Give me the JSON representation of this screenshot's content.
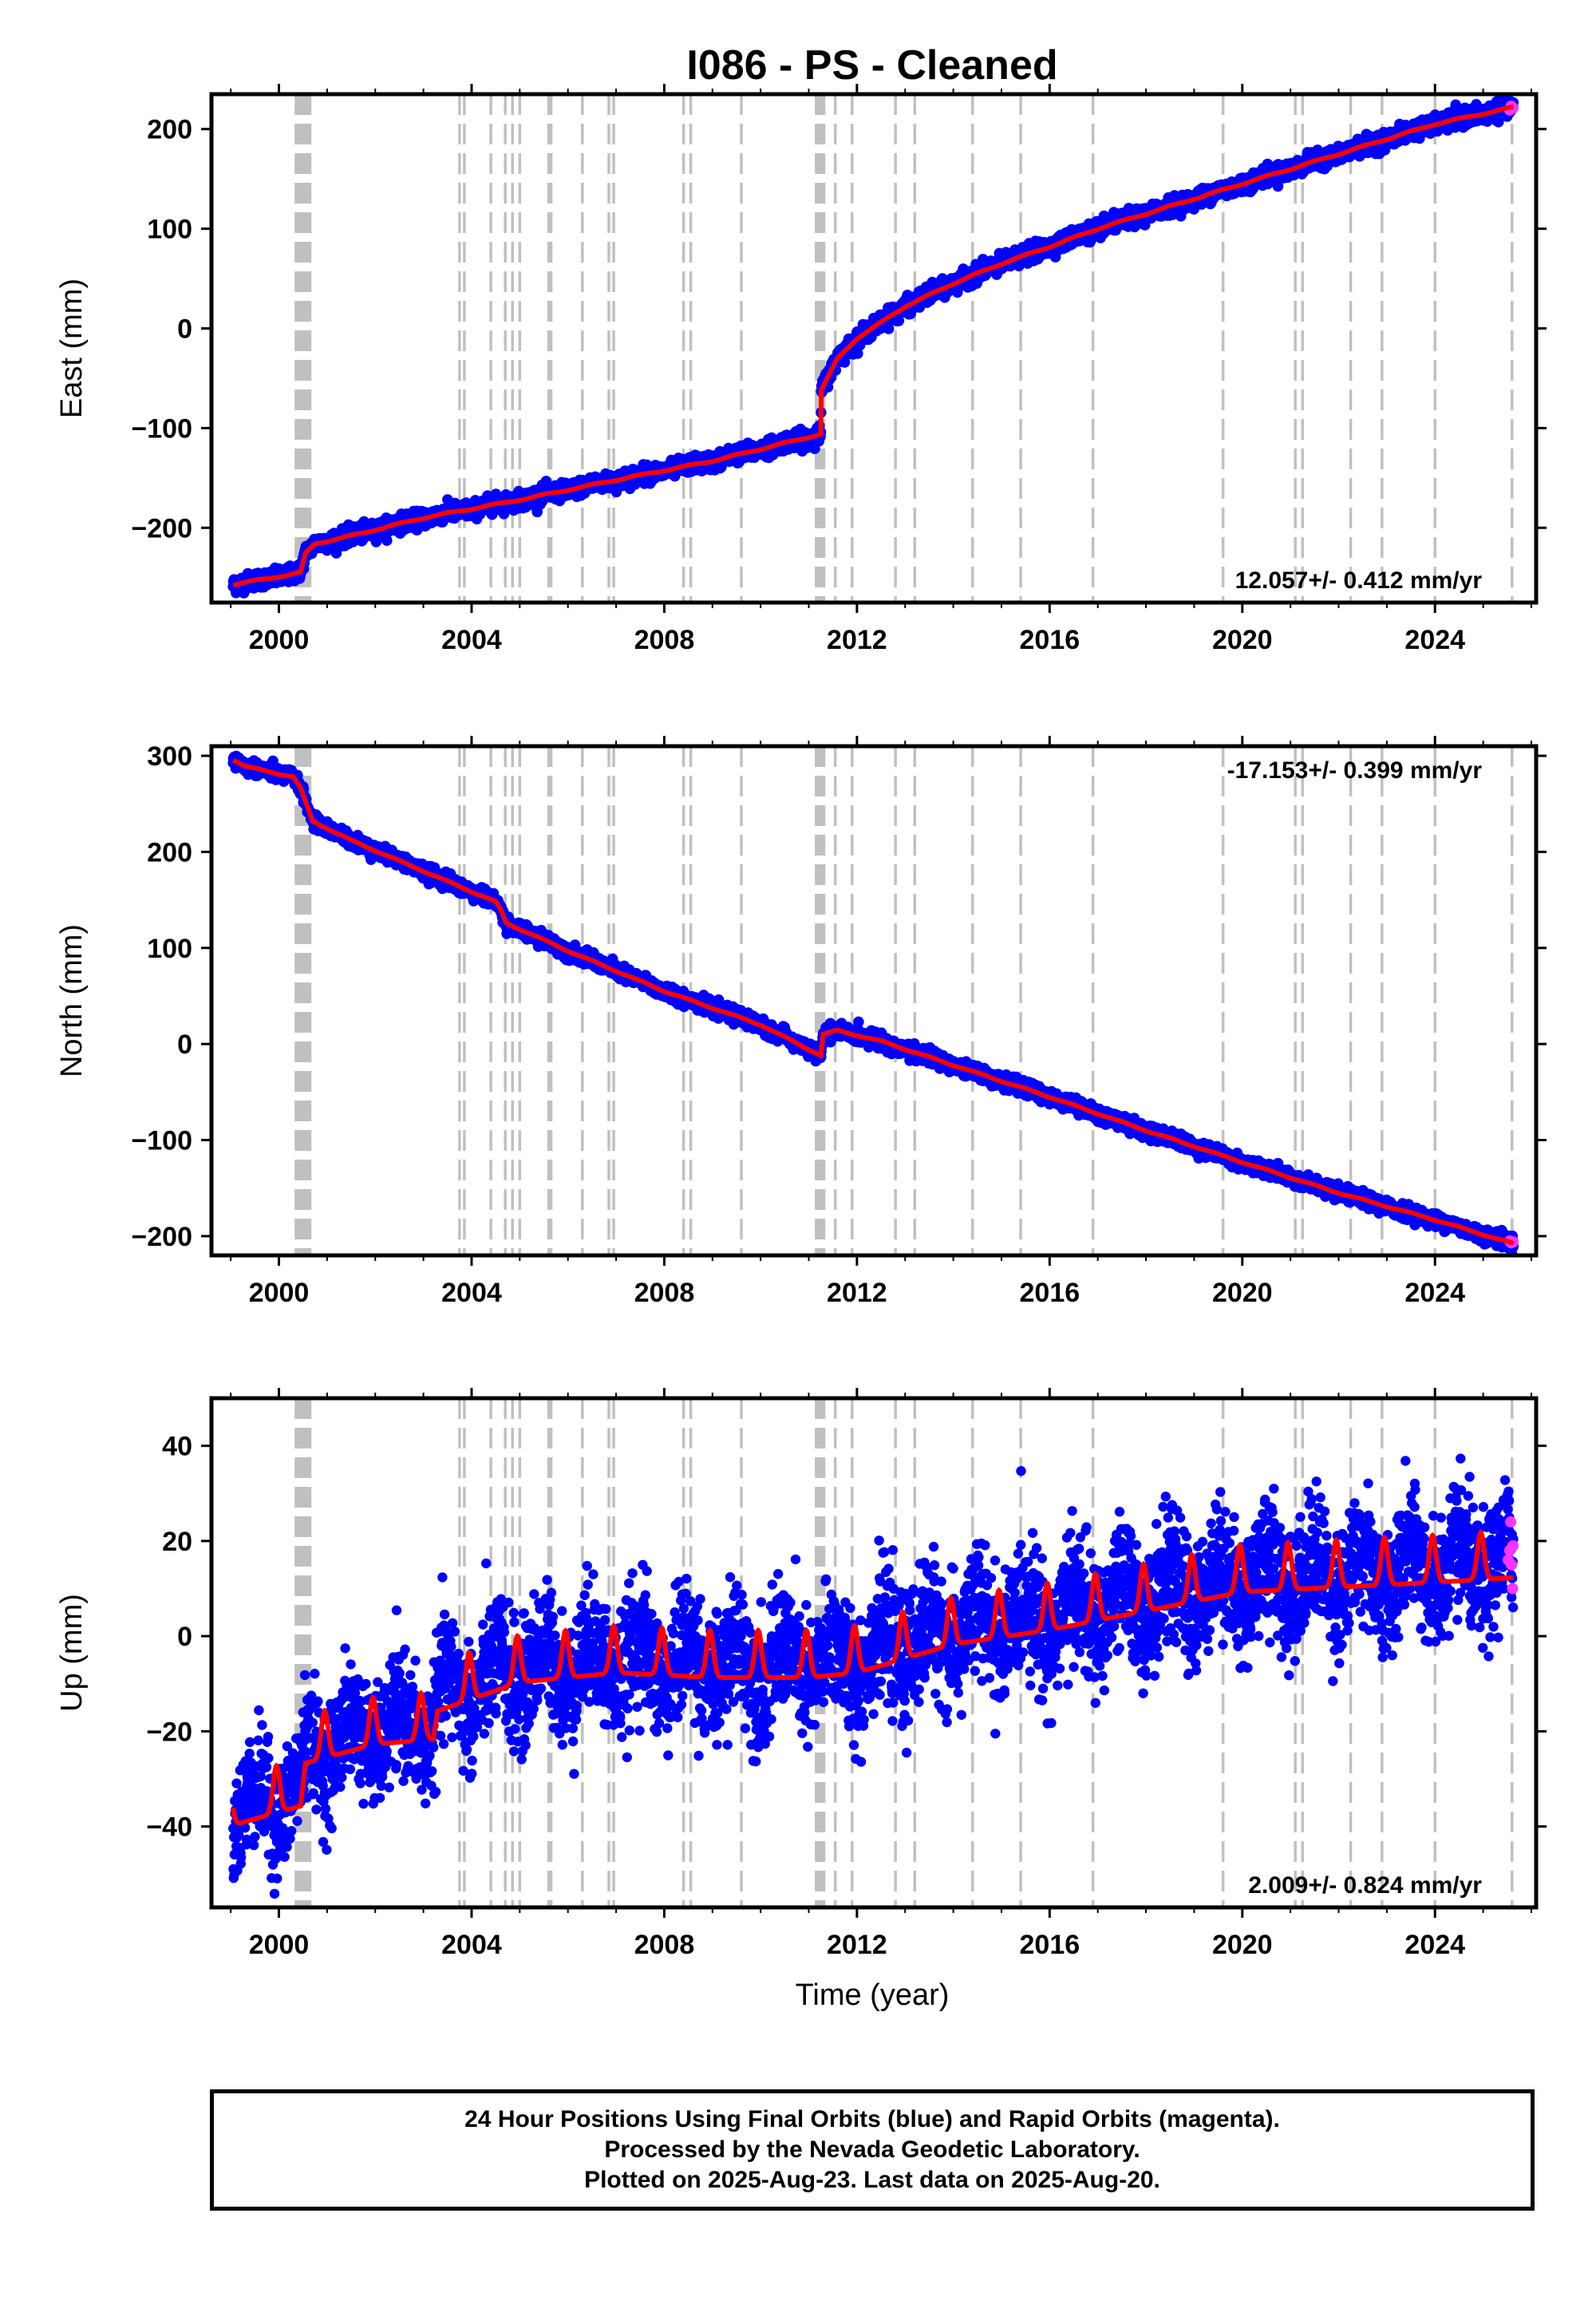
{
  "title": "I086  - PS - Cleaned",
  "footer": {
    "line1": "24 Hour Positions Using Final Orbits (blue) and Rapid Orbits (magenta).",
    "line2": "Processed by the Nevada Geodetic Laboratory.",
    "line3": "Plotted on 2025-Aug-23. Last data on 2025-Aug-20."
  },
  "colors": {
    "final_orbits": "#0000ff",
    "rapid_orbits": "#ff33ff",
    "model": "#ff0000",
    "event_lines": "#c0c0c0"
  },
  "chart_data": [
    {
      "type": "scatter",
      "panel": "east",
      "ylabel": "East (mm)",
      "xlabel": "",
      "xlim": [
        1998.6,
        2026.1
      ],
      "ylim": [
        -275,
        235
      ],
      "xticks": [
        "2000",
        "2004",
        "2008",
        "2012",
        "2016",
        "2020",
        "2024"
      ],
      "yticks": [
        "−200",
        "−100",
        "0",
        "100",
        "200"
      ],
      "rate_text": "12.057+/- 0.412 mm/yr",
      "rate_position": "bottom-right",
      "data_start": 1999.05,
      "data_end": 2025.63,
      "trend": [
        [
          1999.05,
          -257
        ],
        [
          2000.45,
          -245
        ],
        [
          2000.55,
          -226
        ],
        [
          2000.75,
          -216
        ],
        [
          2001.5,
          -208
        ],
        [
          2003.0,
          -190
        ],
        [
          2005.0,
          -172
        ],
        [
          2007.0,
          -152
        ],
        [
          2009.0,
          -133
        ],
        [
          2010.5,
          -115
        ],
        [
          2011.25,
          -106
        ],
        [
          2011.26,
          -62
        ],
        [
          2011.6,
          -30
        ],
        [
          2012.0,
          -10
        ],
        [
          2013.0,
          22
        ],
        [
          2014.0,
          45
        ],
        [
          2015.0,
          65
        ],
        [
          2016.0,
          82
        ],
        [
          2017.0,
          100
        ],
        [
          2018.0,
          115
        ],
        [
          2020.0,
          145
        ],
        [
          2022.0,
          175
        ],
        [
          2024.0,
          205
        ],
        [
          2025.63,
          222
        ]
      ],
      "scatter_amplitude": 4,
      "seasonal_amplitude": 0.7,
      "rapid_points": [
        [
          2025.55,
          219
        ],
        [
          2025.58,
          223
        ],
        [
          2025.62,
          221
        ]
      ]
    },
    {
      "type": "scatter",
      "panel": "north",
      "ylabel": "North (mm)",
      "xlabel": "",
      "xlim": [
        1998.6,
        2026.1
      ],
      "ylim": [
        -220,
        310
      ],
      "xticks": [
        "2000",
        "2004",
        "2008",
        "2012",
        "2016",
        "2020",
        "2024"
      ],
      "yticks": [
        "−200",
        "−100",
        "0",
        "100",
        "200",
        "300"
      ],
      "rate_text": "-17.153+/- 0.399 mm/yr",
      "rate_position": "top-right",
      "data_start": 1999.05,
      "data_end": 2025.63,
      "trend": [
        [
          1999.05,
          296
        ],
        [
          1999.3,
          289
        ],
        [
          2000.3,
          278
        ],
        [
          2000.45,
          266
        ],
        [
          2000.7,
          232
        ],
        [
          2001.5,
          212
        ],
        [
          2003.0,
          180
        ],
        [
          2004.5,
          148
        ],
        [
          2004.6,
          140
        ],
        [
          2004.72,
          126
        ],
        [
          2006.0,
          97
        ],
        [
          2008.0,
          55
        ],
        [
          2010.0,
          20
        ],
        [
          2011.25,
          -12
        ],
        [
          2011.3,
          10
        ],
        [
          2011.6,
          14
        ],
        [
          2012.5,
          3
        ],
        [
          2014.0,
          -22
        ],
        [
          2016.0,
          -55
        ],
        [
          2018.0,
          -90
        ],
        [
          2020.0,
          -123
        ],
        [
          2022.0,
          -155
        ],
        [
          2024.0,
          -183
        ],
        [
          2025.63,
          -208
        ]
      ],
      "scatter_amplitude": 3.5,
      "seasonal_amplitude": 0.6,
      "rapid_points": [
        [
          2025.55,
          -205
        ],
        [
          2025.58,
          -207
        ],
        [
          2025.62,
          -206
        ]
      ]
    },
    {
      "type": "scatter",
      "panel": "up",
      "ylabel": "Up (mm)",
      "xlabel": "Time (year)",
      "xlim": [
        1998.6,
        2026.1
      ],
      "ylim": [
        -57,
        50
      ],
      "xticks": [
        "2000",
        "2004",
        "2008",
        "2012",
        "2016",
        "2020",
        "2024"
      ],
      "yticks": [
        "−40",
        "−20",
        "0",
        "20",
        "40"
      ],
      "rate_text": "2.009+/- 0.824 mm/yr",
      "rate_position": "bottom-right",
      "data_start": 1999.05,
      "data_end": 2025.63,
      "trend": [
        [
          1999.05,
          -37
        ],
        [
          2000.45,
          -33
        ],
        [
          2000.55,
          -24
        ],
        [
          2002.0,
          -20
        ],
        [
          2003.2,
          -19
        ],
        [
          2003.3,
          -13
        ],
        [
          2005.0,
          -7
        ],
        [
          2007.0,
          -5
        ],
        [
          2009.0,
          -6
        ],
        [
          2011.0,
          -6
        ],
        [
          2012.0,
          -5
        ],
        [
          2013.0,
          -2
        ],
        [
          2014.0,
          1
        ],
        [
          2016.0,
          4
        ],
        [
          2018.0,
          8
        ],
        [
          2020.0,
          12
        ],
        [
          2022.0,
          13
        ],
        [
          2024.0,
          14
        ],
        [
          2025.63,
          15
        ]
      ],
      "scatter_amplitude": 6.5,
      "seasonal_amplitude": 4.5,
      "rapid_points": [
        [
          2025.52,
          16
        ],
        [
          2025.55,
          18
        ],
        [
          2025.57,
          24
        ],
        [
          2025.59,
          15
        ],
        [
          2025.61,
          10
        ],
        [
          2025.62,
          19
        ]
      ]
    }
  ],
  "event_lines": [
    2000.4,
    2000.5,
    2000.6,
    2003.75,
    2003.85,
    2004.4,
    2004.7,
    2004.85,
    2005.0,
    2005.6,
    2005.65,
    2006.3,
    2006.85,
    2006.95,
    2008.4,
    2008.55,
    2009.6,
    2011.2,
    2011.27,
    2011.55,
    2011.9,
    2012.8,
    2013.2,
    2014.4,
    2015.4,
    2016.9,
    2019.6,
    2021.1,
    2021.25,
    2022.25,
    2022.9,
    2024.0,
    2025.6
  ],
  "event_lines_heavy": [
    2000.45,
    2000.55,
    2011.22
  ]
}
